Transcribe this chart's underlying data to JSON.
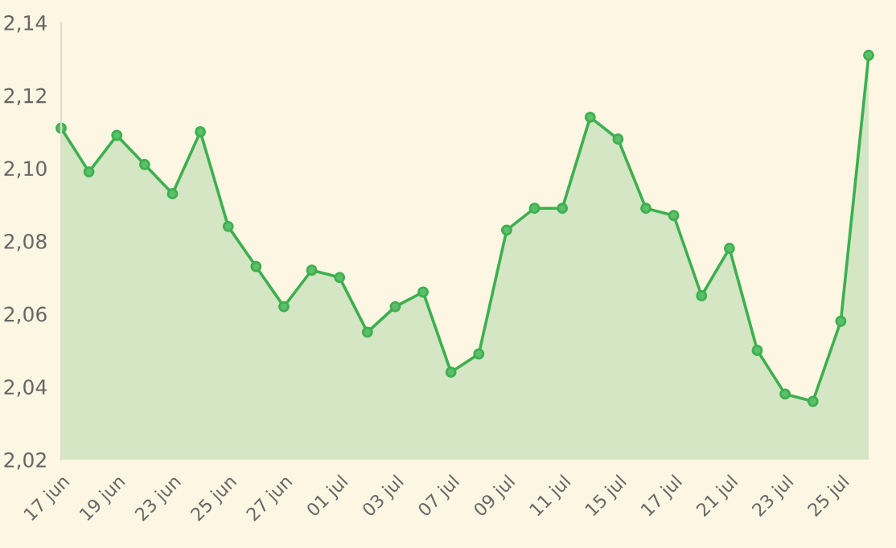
{
  "chart_data": {
    "type": "area",
    "categories": [
      "17 jun",
      null,
      "19 jun",
      null,
      "23 jun",
      null,
      "25 jun",
      null,
      "27 jun",
      null,
      "01 jul",
      null,
      "03 jul",
      null,
      "07 jul",
      null,
      "09 jul",
      null,
      "11 jul",
      null,
      "15 jul",
      null,
      "17 jul",
      null,
      "21 jul",
      null,
      "23 jul",
      null,
      "25 jul",
      null
    ],
    "series": [
      {
        "color": "#3daf4f",
        "values": [
          2.111,
          2.099,
          2.109,
          2.101,
          2.093,
          2.11,
          2.084,
          2.073,
          2.062,
          2.072,
          2.07,
          2.055,
          2.062,
          2.066,
          2.044,
          2.049,
          2.083,
          2.089,
          2.089,
          2.114,
          2.108,
          2.089,
          2.087,
          2.065,
          2.078,
          2.05,
          2.038,
          2.036,
          2.058,
          2.131
        ]
      }
    ],
    "ylim": [
      2.02,
      2.14
    ],
    "yticks": [
      {
        "value": 2.02,
        "label": "2,02"
      },
      {
        "value": 2.04,
        "label": "2,04"
      },
      {
        "value": 2.06,
        "label": "2,06"
      },
      {
        "value": 2.08,
        "label": "2,08"
      },
      {
        "value": 2.1,
        "label": "2,10"
      },
      {
        "value": 2.12,
        "label": "2,12"
      },
      {
        "value": 2.14,
        "label": "2,14"
      }
    ],
    "marker": "circle",
    "grid": false
  }
}
